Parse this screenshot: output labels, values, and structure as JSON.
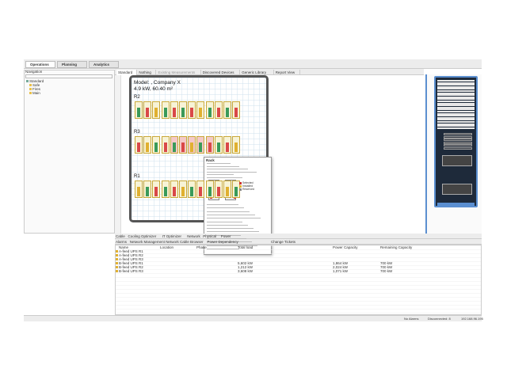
{
  "perspectives": [
    "Operations",
    "Planning",
    "Analytics"
  ],
  "navigation": {
    "title": "Navigation",
    "tree": [
      "Standard",
      "Safe",
      "Fires",
      "Main"
    ]
  },
  "editor_tabs": [
    "Standard",
    "Nothing",
    "Existing Measurements",
    "Discovered Devices",
    "Generic Library",
    "Report View"
  ],
  "floor": {
    "model": "Model: , Company X",
    "summary": "4.9 kW, 60.40 m²",
    "rows": [
      "R2",
      "R3",
      "R1"
    ]
  },
  "tooltip": {
    "title": "Rack",
    "legend": [
      "Selected",
      "Installed",
      "Reserved"
    ]
  },
  "bottom_tabs": [
    "Cable",
    "Cooling Optimizer",
    "IT Optimizer",
    "Network",
    "Physical",
    "Power"
  ],
  "table": {
    "tabs": [
      "Alarms",
      "Network Management",
      "Network Cable Browser",
      "Power Dependency",
      "Change Tickets"
    ],
    "columns": [
      "Name",
      "Location",
      "Phase",
      "Total load",
      "Power Capacity",
      "Remaining Capacity"
    ],
    "rows": [
      {
        "name": "A-feed UPS R1"
      },
      {
        "name": "A-feed UPS R2"
      },
      {
        "name": "A-feed UPS R3"
      },
      {
        "name": "B-feed UPS R1",
        "load": "5,602 kW",
        "capacity": "1,864 kW",
        "remaining": "700 kW"
      },
      {
        "name": "B-feed UPS R2",
        "load": "1,212 kW",
        "capacity": "2,024 kW",
        "remaining": "700 kW"
      },
      {
        "name": "B-feed UPS R3",
        "load": "3,608 kW",
        "capacity": "1,071 kW",
        "remaining": "700 kW"
      }
    ]
  },
  "status": [
    "No Alarms",
    "Disconnected: 8",
    "192.168.96.195"
  ]
}
